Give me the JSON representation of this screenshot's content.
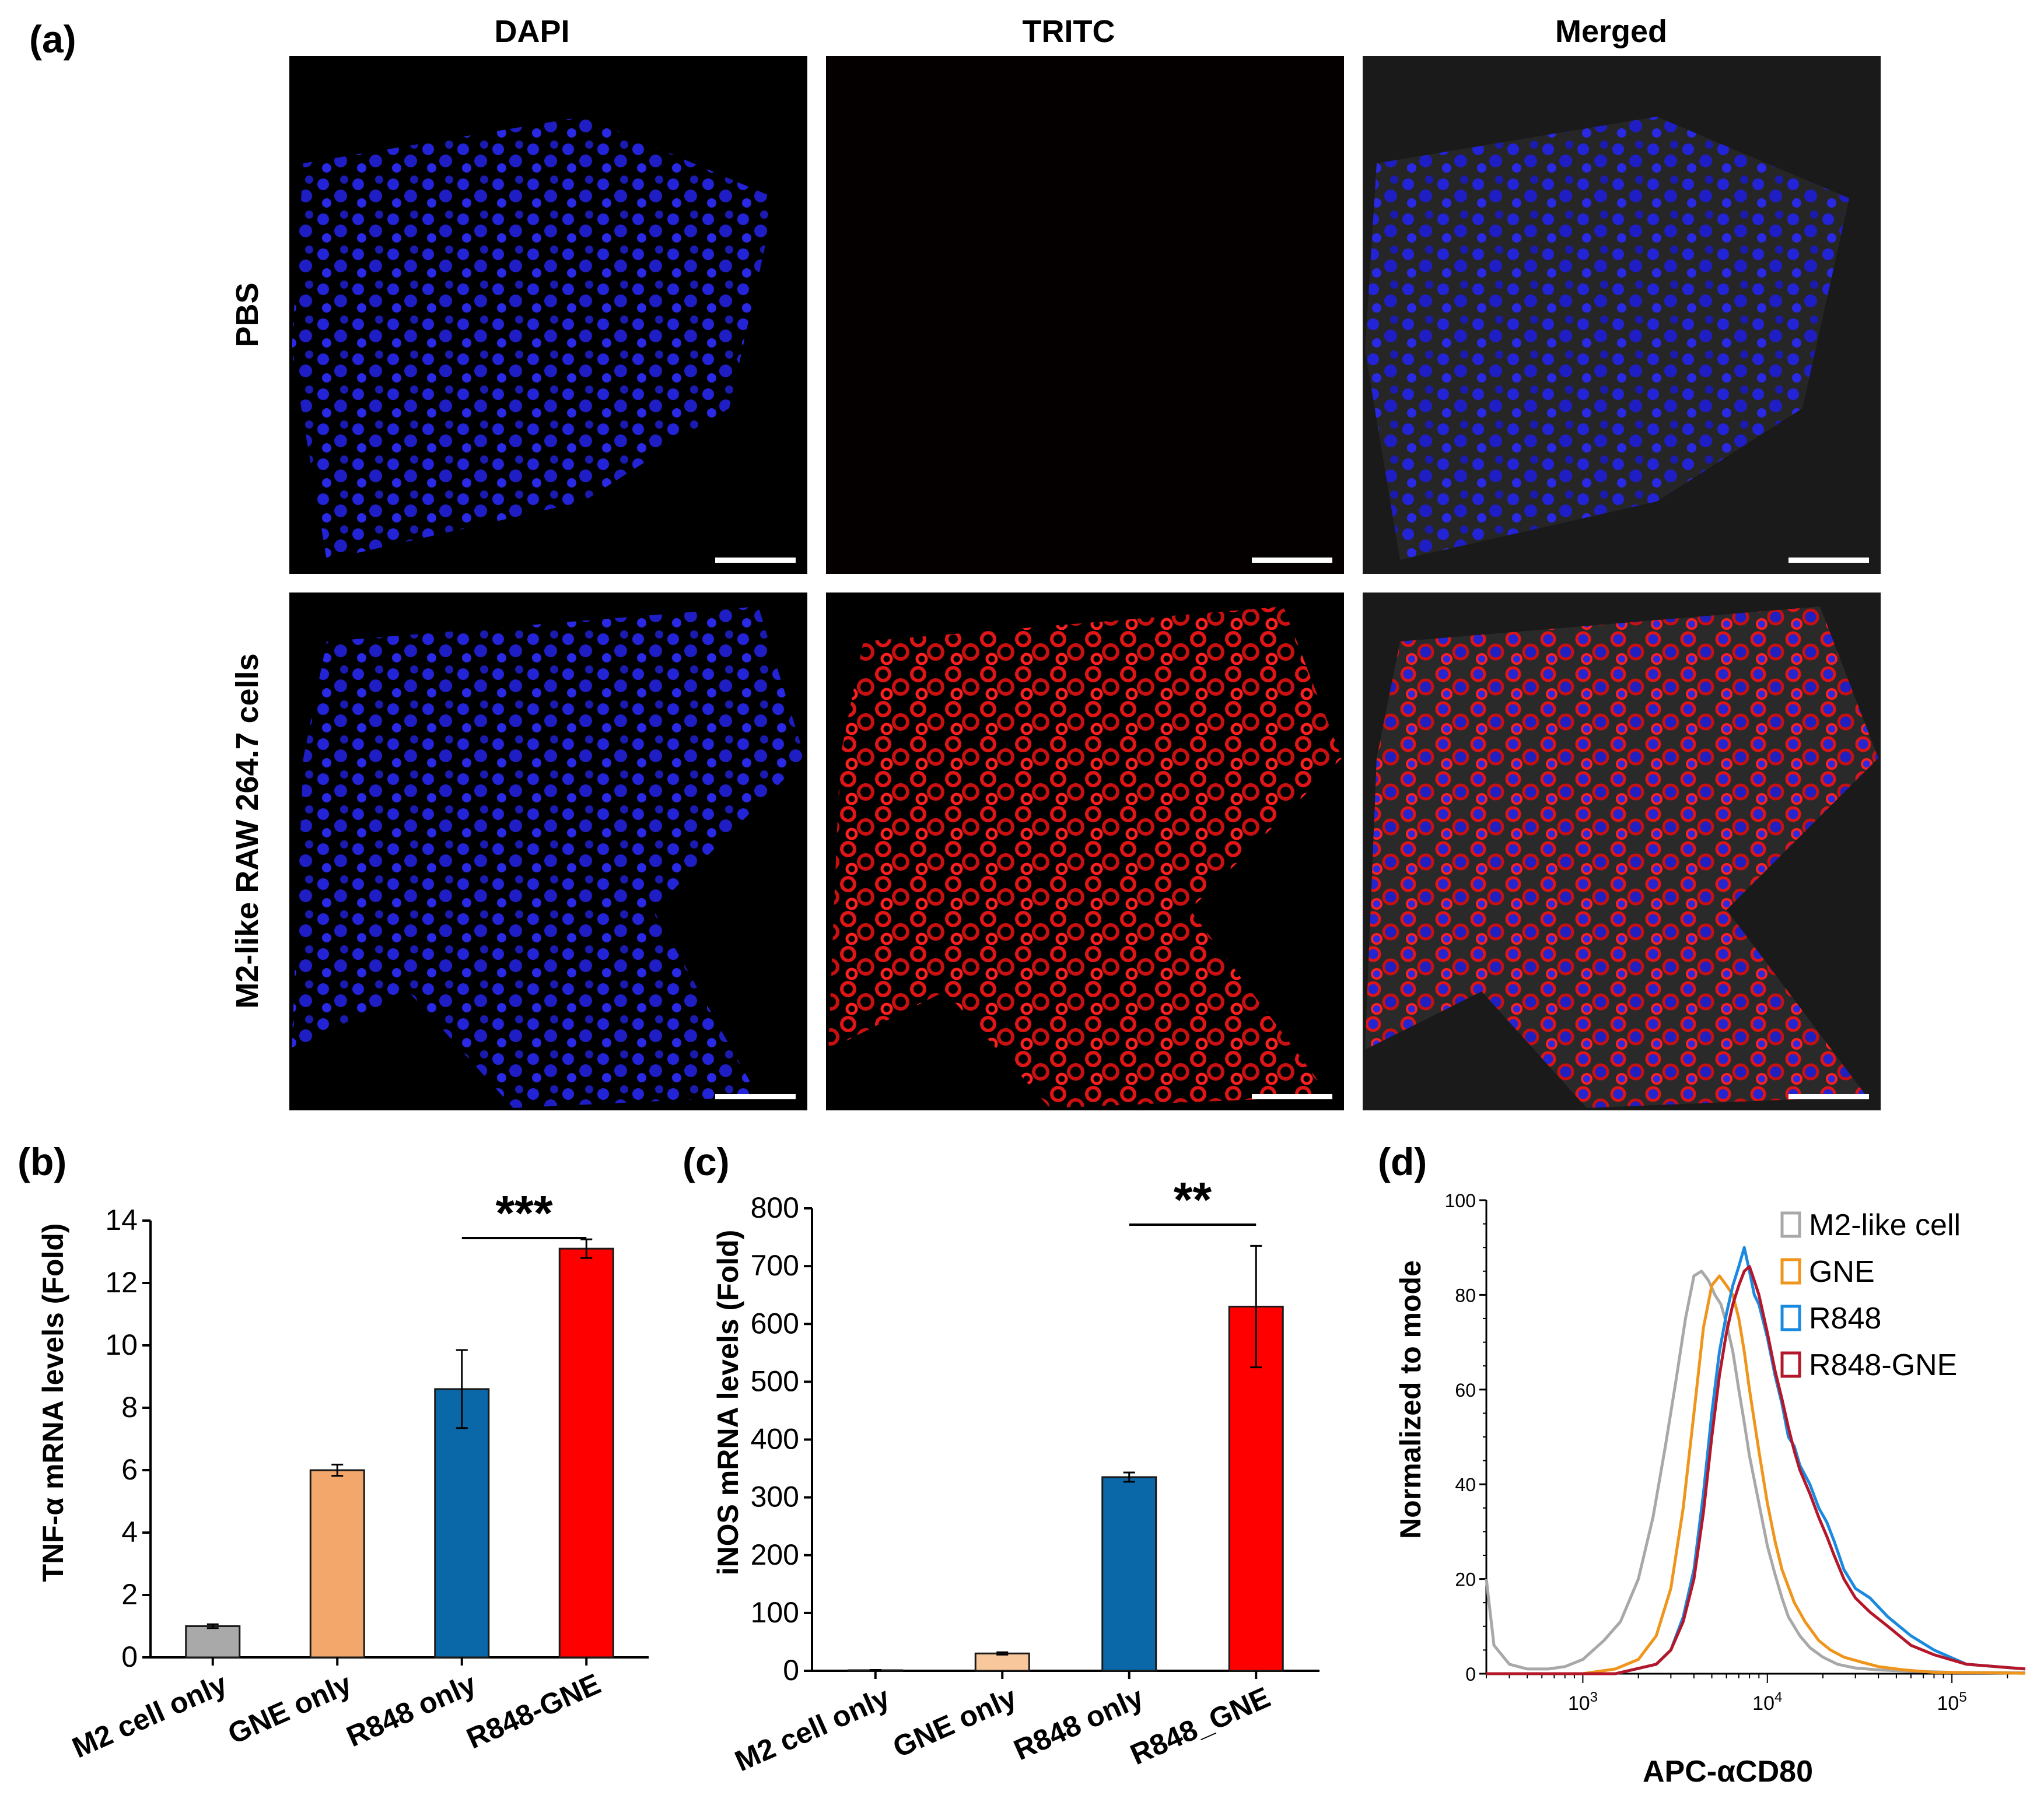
{
  "panel_a": {
    "label": "(a)",
    "columns": [
      "DAPI",
      "TRITC",
      "Merged"
    ],
    "rows": [
      "PBS",
      "M2-like RAW 264.7 cells"
    ]
  },
  "chart_data": [
    {
      "panel": "(b)",
      "type": "bar",
      "title": "",
      "categories": [
        "M2 cell only",
        "GNE only",
        "R848 only",
        "R848-GNE"
      ],
      "values": [
        1.0,
        6.0,
        8.6,
        13.1
      ],
      "errors": [
        0.06,
        0.18,
        1.25,
        0.3
      ],
      "colors": [
        "#a9a9a9",
        "#f4a76a",
        "#0b68a8",
        "#fe0000"
      ],
      "xlabel": "",
      "ylabel": "TNF-α mRNA levels (Fold)",
      "ylim": [
        0,
        14
      ],
      "yticks": [
        0,
        2,
        4,
        6,
        8,
        10,
        12,
        14
      ],
      "significance": {
        "from": "R848 only",
        "to": "R848-GNE",
        "label": "***"
      }
    },
    {
      "panel": "(c)",
      "type": "bar",
      "title": "",
      "categories": [
        "M2 cell only",
        "GNE only",
        "R848 only",
        "R848_GNE"
      ],
      "values": [
        1,
        30,
        335,
        630
      ],
      "errors": [
        0.5,
        2,
        8,
        105
      ],
      "colors": [
        "#a9a9a9",
        "#f9c79c",
        "#0b68a8",
        "#fe0000"
      ],
      "xlabel": "",
      "ylabel": "iNOS mRNA levels (Fold)",
      "ylim": [
        0,
        800
      ],
      "yticks": [
        0,
        100,
        200,
        300,
        400,
        500,
        600,
        700,
        800
      ],
      "significance": {
        "from": "R848 only",
        "to": "R848_GNE",
        "label": "**"
      }
    },
    {
      "panel": "(d)",
      "type": "line",
      "title": "",
      "xlabel": "APC-αCD80",
      "ylabel": "Normalized to mode",
      "xscale": "log",
      "xlim": [
        300,
        250000
      ],
      "ylim": [
        0,
        100
      ],
      "yticks": [
        0,
        20,
        40,
        60,
        80,
        100
      ],
      "xticks": [
        "10^3",
        "10^4",
        "10^5"
      ],
      "legend": {
        "placement": "top-right"
      },
      "series": [
        {
          "name": "M2-like cell",
          "color": "#a8a8a8",
          "x": [
            300,
            330,
            400,
            500,
            650,
            800,
            1000,
            1300,
            1600,
            2000,
            2400,
            2800,
            3200,
            3600,
            4000,
            4400,
            4800,
            5200,
            5600,
            6000,
            6500,
            7000,
            7500,
            8000,
            9000,
            10000,
            11000,
            12000,
            13000,
            15000,
            17000,
            20000,
            24000,
            30000,
            40000,
            60000,
            100000,
            250000
          ],
          "y": [
            20,
            6,
            2,
            1,
            1,
            1.5,
            3,
            7,
            11,
            20,
            33,
            48,
            62,
            75,
            84,
            85,
            83,
            80,
            78,
            74,
            68,
            60,
            53,
            46,
            36,
            27,
            21,
            16,
            12,
            8,
            5.5,
            3.5,
            2,
            1.2,
            0.8,
            0.5,
            0.3,
            0.2
          ]
        },
        {
          "name": "GNE",
          "color": "#f0951b",
          "x": [
            300,
            1000,
            1500,
            2000,
            2500,
            3000,
            3500,
            4000,
            4500,
            5000,
            5500,
            6000,
            6500,
            7000,
            7500,
            8000,
            9000,
            10000,
            11000,
            12000,
            14000,
            16000,
            19000,
            22000,
            26000,
            32000,
            40000,
            55000,
            80000,
            250000
          ],
          "y": [
            0,
            0,
            1,
            3,
            8,
            18,
            35,
            55,
            73,
            82,
            84,
            82,
            80,
            75,
            68,
            60,
            47,
            36,
            28,
            22,
            15,
            11,
            7,
            5,
            3.5,
            2.5,
            1.5,
            0.8,
            0.3,
            0.1
          ]
        },
        {
          "name": "R848",
          "color": "#1a8ae0",
          "x": [
            300,
            1500,
            2500,
            3000,
            3500,
            4000,
            4500,
            5000,
            5500,
            6000,
            6500,
            7000,
            7500,
            8000,
            8500,
            9000,
            10000,
            11000,
            12000,
            13000,
            14000,
            15000,
            17000,
            19000,
            21000,
            23000,
            26000,
            30000,
            36000,
            45000,
            60000,
            80000,
            120000,
            250000
          ],
          "y": [
            0,
            0,
            2,
            5,
            12,
            22,
            38,
            55,
            68,
            76,
            82,
            86,
            90,
            85,
            80,
            78,
            71,
            63,
            57,
            50,
            48,
            44,
            40,
            35,
            32,
            28,
            22,
            18,
            16,
            12,
            8,
            5,
            2,
            1
          ]
        },
        {
          "name": "R848-GNE",
          "color": "#b5172a",
          "x": [
            300,
            1500,
            2500,
            3000,
            3500,
            4000,
            4500,
            5000,
            5500,
            6000,
            6500,
            7000,
            7500,
            8000,
            8500,
            9000,
            10000,
            11000,
            12000,
            13000,
            14000,
            15000,
            17000,
            19000,
            21000,
            23000,
            26000,
            30000,
            36000,
            45000,
            60000,
            80000,
            120000,
            250000
          ],
          "y": [
            0,
            0,
            2,
            5,
            11,
            20,
            34,
            50,
            63,
            72,
            78,
            82,
            85,
            86,
            83,
            80,
            72,
            64,
            58,
            52,
            47,
            43,
            38,
            33,
            29,
            25,
            20,
            16,
            13,
            10,
            6,
            4,
            2,
            1
          ]
        }
      ]
    }
  ]
}
